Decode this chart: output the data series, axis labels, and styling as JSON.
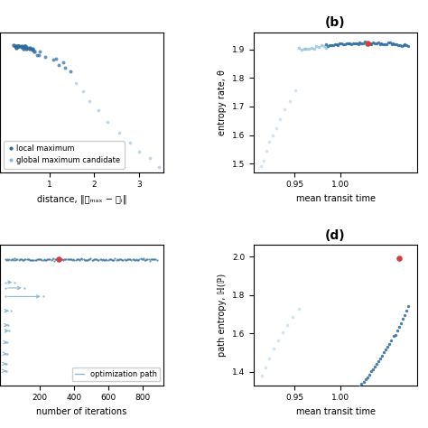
{
  "fig_width": 4.74,
  "fig_height": 4.74,
  "bg_color": "#ffffff",
  "panel_b_label": "(b)",
  "panel_d_label": "(d)",
  "panel_b_xlabel": "mean transit time",
  "panel_b_ylabel": "entropy rate, θ",
  "panel_d_xlabel": "mean transit time",
  "panel_d_ylabel": "path entropy, ℍ(ℙ)",
  "panel_a_xlabel": "distance, ‖𝐩ₘₐₓ − 𝐩ᵢ‖",
  "panel_c_xlabel": "number of iterations",
  "dot_color_dark": "#2b6a9e",
  "dot_color_light": "#8ab8d4",
  "dot_color_vlight": "#b8d4e8",
  "dot_color_red": "#d63c3c",
  "legend_a_local": "local maximum",
  "legend_a_global": "global maximum candidate",
  "legend_c_opt": "optimization path"
}
